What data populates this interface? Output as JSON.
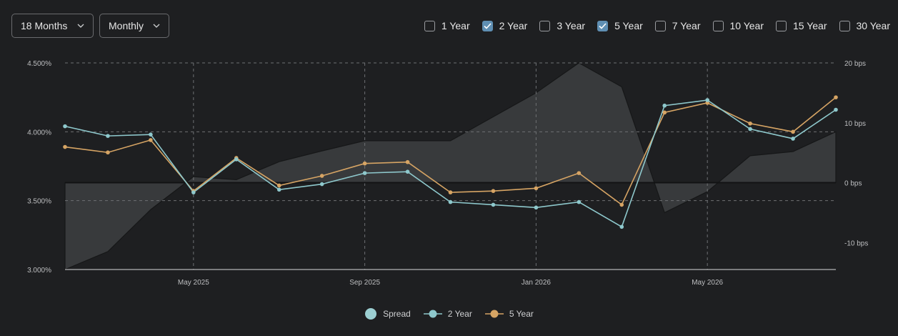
{
  "controls": {
    "range_label": "18 Months",
    "frequency_label": "Monthly"
  },
  "tenors": [
    {
      "label": "1 Year",
      "checked": false
    },
    {
      "label": "2 Year",
      "checked": true
    },
    {
      "label": "3 Year",
      "checked": false
    },
    {
      "label": "5 Year",
      "checked": true
    },
    {
      "label": "7 Year",
      "checked": false
    },
    {
      "label": "10 Year",
      "checked": false
    },
    {
      "label": "15 Year",
      "checked": false
    },
    {
      "label": "30 Year",
      "checked": false
    }
  ],
  "legend": {
    "spread": "Spread",
    "two_year": "2 Year",
    "five_year": "5 Year"
  },
  "colors": {
    "background": "#1e1f21",
    "two_year": "#8ec8cc",
    "five_year": "#d6a464",
    "spread_fill": "#3a3c3e",
    "spread_legend": "#9ccfd2",
    "checkbox_on": "#5f8fb3"
  },
  "chart_data": {
    "type": "line",
    "x_labels": [
      "May 2025",
      "Sep 2025",
      "Jan 2026",
      "May 2026"
    ],
    "y_left": {
      "ticks": [
        "4.500%",
        "4.000%",
        "3.500%",
        "3.000%"
      ],
      "range": [
        3.0,
        4.5
      ]
    },
    "y_right": {
      "ticks": [
        "20 bps",
        "10 bps",
        "0 bps",
        "-10 bps"
      ],
      "range": [
        -14.5,
        20
      ]
    },
    "grid": true,
    "legend_position": "bottom",
    "x": [
      "2025-02-01",
      "2025-03-01",
      "2025-04-01",
      "2025-05-01",
      "2025-06-01",
      "2025-07-01",
      "2025-08-01",
      "2025-09-01",
      "2025-10-01",
      "2025-11-01",
      "2025-12-01",
      "2026-01-01",
      "2026-02-01",
      "2026-03-01",
      "2026-04-01",
      "2026-05-01",
      "2026-06-01",
      "2026-07-01",
      "2026-08-01"
    ],
    "series": [
      {
        "name": "2 Year",
        "axis": "left",
        "values": [
          4.04,
          3.97,
          3.98,
          3.56,
          3.8,
          3.58,
          3.62,
          3.7,
          3.71,
          3.49,
          3.47,
          3.45,
          3.49,
          3.31,
          4.19,
          4.23,
          4.02,
          3.95,
          4.16
        ]
      },
      {
        "name": "5 Year",
        "axis": "left",
        "values": [
          3.89,
          3.85,
          3.94,
          3.57,
          3.81,
          3.61,
          3.68,
          3.77,
          3.78,
          3.56,
          3.57,
          3.59,
          3.7,
          3.47,
          4.14,
          4.21,
          4.06,
          4.0,
          4.25
        ]
      },
      {
        "name": "Spread",
        "axis": "right",
        "type": "area",
        "values": [
          -14.5,
          -11.5,
          -4.5,
          1,
          0.5,
          3.5,
          5.3,
          7,
          7,
          7,
          11,
          15,
          20,
          16,
          -5,
          -1.5,
          4.5,
          5.2,
          8.5
        ]
      }
    ]
  }
}
